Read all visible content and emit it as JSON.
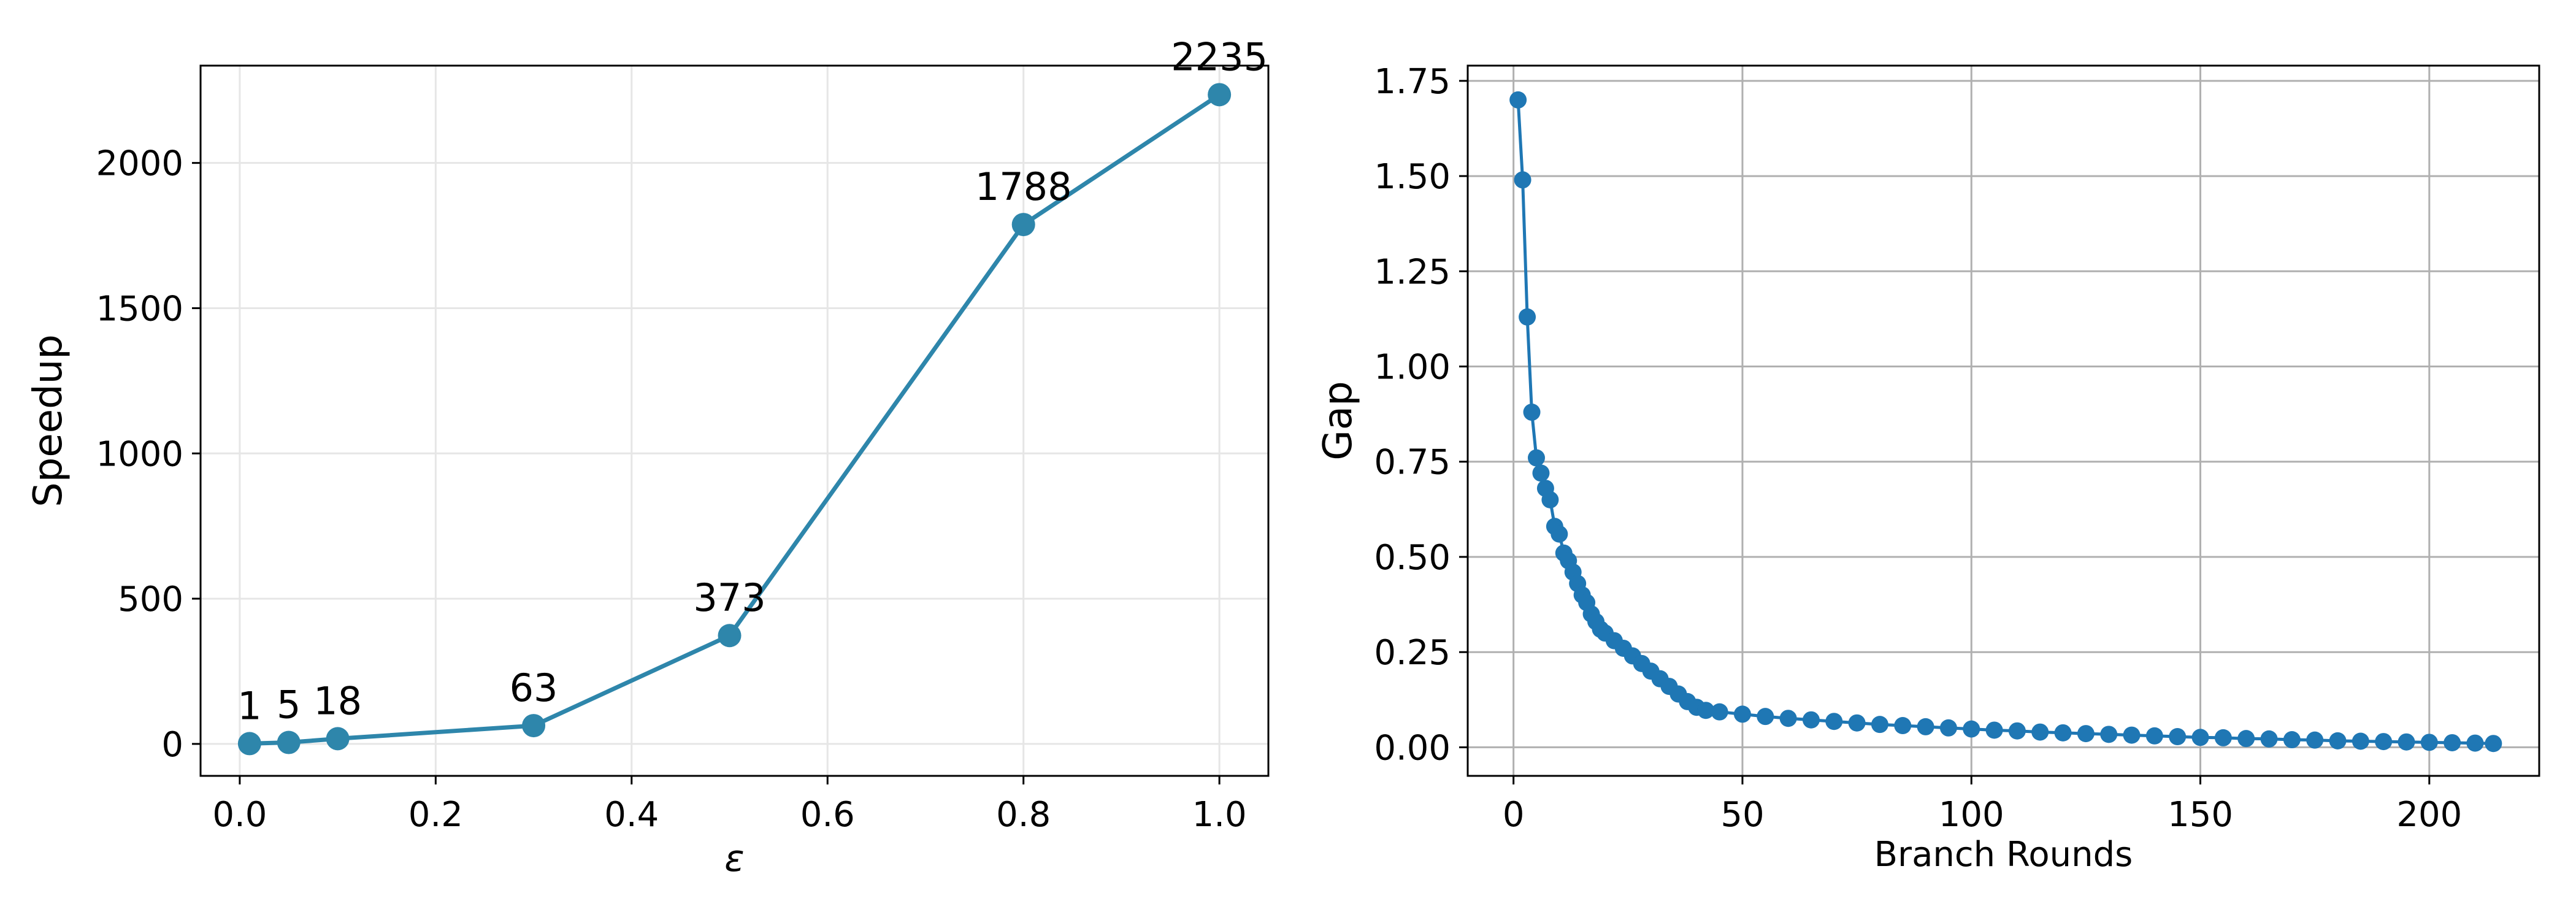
{
  "chart_data": [
    {
      "type": "line",
      "xlabel": "ε",
      "ylabel": "Speedup",
      "xlim": [
        -0.04,
        1.05
      ],
      "ylim": [
        -110,
        2335
      ],
      "xticks": [
        0.0,
        0.2,
        0.4,
        0.6,
        0.8,
        1.0
      ],
      "xtick_labels": [
        "0.0",
        "0.2",
        "0.4",
        "0.6",
        "0.8",
        "1.0"
      ],
      "yticks": [
        0,
        500,
        1000,
        1500,
        2000
      ],
      "ytick_labels": [
        "0",
        "500",
        "1000",
        "1500",
        "2000"
      ],
      "grid": true,
      "color": "#2e86ab",
      "series": [
        {
          "x": [
            0.01,
            0.05,
            0.1,
            0.3,
            0.5,
            0.8,
            1.0
          ],
          "y": [
            1,
            5,
            18,
            63,
            373,
            1788,
            2235
          ],
          "labels": [
            "1",
            "5",
            "18",
            "63",
            "373",
            "1788",
            "2235"
          ]
        }
      ]
    },
    {
      "type": "line",
      "xlabel": "Branch Rounds",
      "ylabel": "Gap",
      "xlim": [
        -10,
        224
      ],
      "ylim": [
        -0.075,
        1.79
      ],
      "xticks": [
        0,
        50,
        100,
        150,
        200
      ],
      "xtick_labels": [
        "0",
        "50",
        "100",
        "150",
        "200"
      ],
      "yticks": [
        0.0,
        0.25,
        0.5,
        0.75,
        1.0,
        1.25,
        1.5,
        1.75
      ],
      "ytick_labels": [
        "0.00",
        "0.25",
        "0.50",
        "0.75",
        "1.00",
        "1.25",
        "1.50",
        "1.75"
      ],
      "grid": true,
      "color": "#1f77b4",
      "series": [
        {
          "x": [
            1,
            2,
            3,
            4,
            5,
            6,
            7,
            8,
            9,
            10,
            11,
            12,
            13,
            14,
            15,
            16,
            17,
            18,
            19,
            20,
            22,
            24,
            26,
            28,
            30,
            32,
            34,
            36,
            38,
            40,
            42,
            45,
            50,
            55,
            60,
            65,
            70,
            75,
            80,
            85,
            90,
            95,
            100,
            105,
            110,
            115,
            120,
            125,
            130,
            135,
            140,
            145,
            150,
            155,
            160,
            165,
            170,
            175,
            180,
            185,
            190,
            195,
            200,
            205,
            210,
            214
          ],
          "y": [
            1.7,
            1.49,
            1.13,
            0.88,
            0.76,
            0.72,
            0.68,
            0.65,
            0.58,
            0.56,
            0.51,
            0.49,
            0.46,
            0.43,
            0.4,
            0.38,
            0.35,
            0.33,
            0.31,
            0.3,
            0.28,
            0.26,
            0.24,
            0.22,
            0.2,
            0.18,
            0.16,
            0.14,
            0.12,
            0.105,
            0.097,
            0.093,
            0.087,
            0.081,
            0.076,
            0.072,
            0.068,
            0.064,
            0.06,
            0.057,
            0.054,
            0.051,
            0.048,
            0.045,
            0.043,
            0.04,
            0.038,
            0.036,
            0.034,
            0.032,
            0.03,
            0.028,
            0.026,
            0.025,
            0.023,
            0.022,
            0.02,
            0.019,
            0.017,
            0.016,
            0.015,
            0.014,
            0.013,
            0.012,
            0.011,
            0.01
          ]
        }
      ]
    }
  ]
}
